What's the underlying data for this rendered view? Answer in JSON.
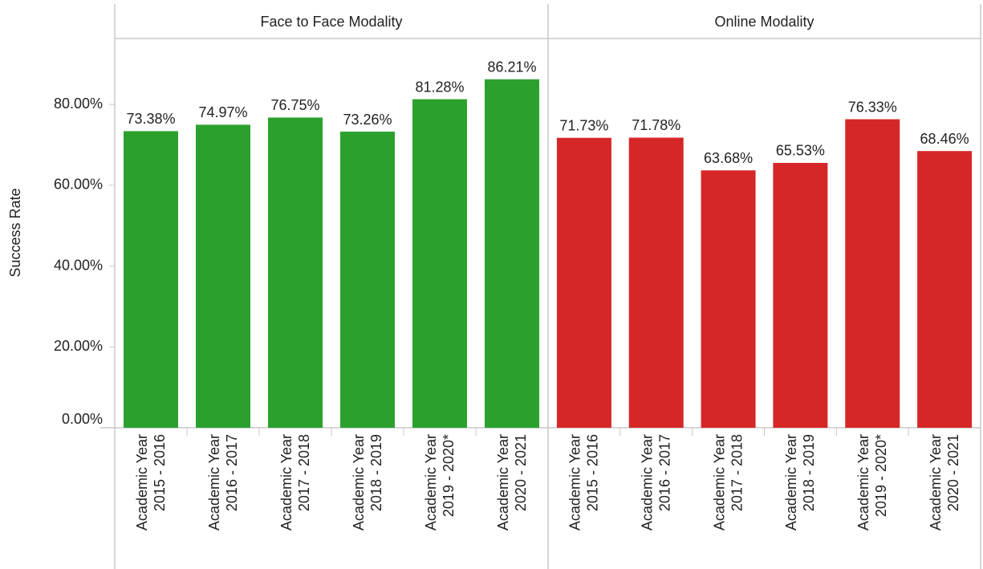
{
  "chart_data": [
    {
      "type": "bar",
      "title": "Face to Face Modality",
      "y_label": "Success Rate",
      "color": "#2ca02c",
      "categories": [
        [
          "Academic Year",
          "2015 - 2016"
        ],
        [
          "Academic Year",
          "2016 - 2017"
        ],
        [
          "Academic Year",
          "2017 - 2018"
        ],
        [
          "Academic Year",
          "2018 - 2019"
        ],
        [
          "Academic Year",
          "2019 - 2020*"
        ],
        [
          "Academic Year",
          "2020 - 2021"
        ]
      ],
      "values": [
        73.38,
        74.97,
        76.75,
        73.26,
        81.28,
        86.21
      ],
      "value_labels": [
        "73.38%",
        "74.97%",
        "76.75%",
        "73.26%",
        "81.28%",
        "86.21%"
      ],
      "ylim": [
        0,
        96.3
      ],
      "yticks": [
        {
          "value": 0,
          "label": "0.00%"
        },
        {
          "value": 20,
          "label": "20.00%"
        },
        {
          "value": 40,
          "label": "40.00%"
        },
        {
          "value": 60,
          "label": "60.00%"
        },
        {
          "value": 80,
          "label": "80.00%"
        }
      ]
    },
    {
      "type": "bar",
      "title": "Online Modality",
      "color": "#d62728",
      "categories": [
        [
          "Academic Year",
          "2015 - 2016"
        ],
        [
          "Academic Year",
          "2016 - 2017"
        ],
        [
          "Academic Year",
          "2017 - 2018"
        ],
        [
          "Academic Year",
          "2018 - 2019"
        ],
        [
          "Academic Year",
          "2019 - 2020*"
        ],
        [
          "Academic Year",
          "2020 - 2021"
        ]
      ],
      "values": [
        71.73,
        71.78,
        63.68,
        65.53,
        76.33,
        68.46
      ],
      "value_labels": [
        "71.73%",
        "71.78%",
        "63.68%",
        "65.53%",
        "76.33%",
        "68.46%"
      ],
      "ylim": [
        0,
        96.3
      ]
    }
  ]
}
